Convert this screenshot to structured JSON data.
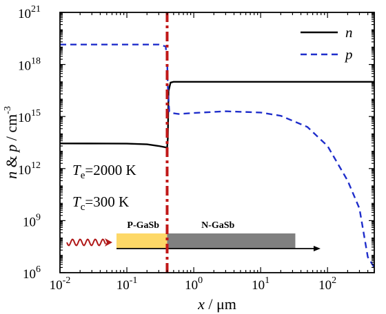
{
  "chart_data": {
    "type": "line",
    "xscale": "log",
    "yscale": "log",
    "xlim": [
      0.01,
      500
    ],
    "ylim": [
      1000000.0,
      1e+21
    ],
    "x_ticks": [
      {
        "value": 0.01,
        "base": "10",
        "exp": "-2"
      },
      {
        "value": 0.1,
        "base": "10",
        "exp": "-1"
      },
      {
        "value": 1,
        "base": "10",
        "exp": "0"
      },
      {
        "value": 10,
        "base": "10",
        "exp": "1"
      },
      {
        "value": 100,
        "base": "10",
        "exp": "2"
      }
    ],
    "y_ticks": [
      {
        "value": 1000000.0,
        "base": "10",
        "exp": "6"
      },
      {
        "value": 1000000000.0,
        "base": "10",
        "exp": "9"
      },
      {
        "value": 1000000000000.0,
        "base": "10",
        "exp": "12"
      },
      {
        "value": 1000000000000000.0,
        "base": "10",
        "exp": "15"
      },
      {
        "value": 1e+18,
        "base": "10",
        "exp": "18"
      },
      {
        "value": 1e+21,
        "base": "10",
        "exp": "21"
      }
    ],
    "xlabel": {
      "var": "x",
      "rest": " / μm"
    },
    "ylabel": {
      "var1": "n",
      "mid": " & ",
      "var2": "p",
      "rest": " / cm",
      "exp": "-3"
    },
    "series": [
      {
        "name": "n",
        "color": "#000000",
        "style": "solid",
        "points": [
          [
            0.01,
            28000000000000.0
          ],
          [
            0.05,
            27800000000000.0
          ],
          [
            0.1,
            27500000000000.0
          ],
          [
            0.2,
            25000000000000.0
          ],
          [
            0.3,
            20000000000000.0
          ],
          [
            0.4,
            16000000000000.0
          ],
          [
            0.41,
            60000000000000.0
          ],
          [
            0.42,
            3e+16
          ],
          [
            0.45,
            9e+16
          ],
          [
            0.5,
            1e+17
          ],
          [
            1,
            1e+17
          ],
          [
            10,
            1e+17
          ],
          [
            100,
            1e+17
          ],
          [
            500,
            1e+17
          ]
        ]
      },
      {
        "name": "p",
        "color": "#1f2ecb",
        "style": "dashed",
        "points": [
          [
            0.01,
            1.4e+19
          ],
          [
            0.05,
            1.4e+19
          ],
          [
            0.1,
            1.4e+19
          ],
          [
            0.2,
            1.4e+19
          ],
          [
            0.3,
            1.4e+19
          ],
          [
            0.38,
            1.1e+19
          ],
          [
            0.4,
            2e+18
          ],
          [
            0.41,
            5e+16
          ],
          [
            0.43,
            2000000000000000.0
          ],
          [
            0.46,
            1600000000000000.0
          ],
          [
            0.6,
            1400000000000000.0
          ],
          [
            1,
            1600000000000000.0
          ],
          [
            3,
            2000000000000000.0
          ],
          [
            10,
            1700000000000000.0
          ],
          [
            20,
            1100000000000000.0
          ],
          [
            50,
            250000000000000.0
          ],
          [
            100,
            20000000000000.0
          ],
          [
            200,
            200000000000.0
          ],
          [
            300,
            5000000000.0
          ],
          [
            400,
            8000000.0
          ],
          [
            500,
            2000000.0
          ]
        ]
      }
    ],
    "junction": {
      "x": 0.4,
      "color": "#c01818",
      "style": "dash-dot"
    },
    "legend": {
      "placement": "top-right"
    },
    "annotations": {
      "te": {
        "var": "T",
        "sub": "e",
        "rest": "=2000 K"
      },
      "tc": {
        "var": "T",
        "sub": "c",
        "rest": "=300 K"
      }
    },
    "inset": {
      "p_label": "P-GaSb",
      "n_label": "N-GaSb",
      "p_color": "#fdd867",
      "n_color": "#808080",
      "arrow_color": "#b01818"
    },
    "grid": false
  }
}
